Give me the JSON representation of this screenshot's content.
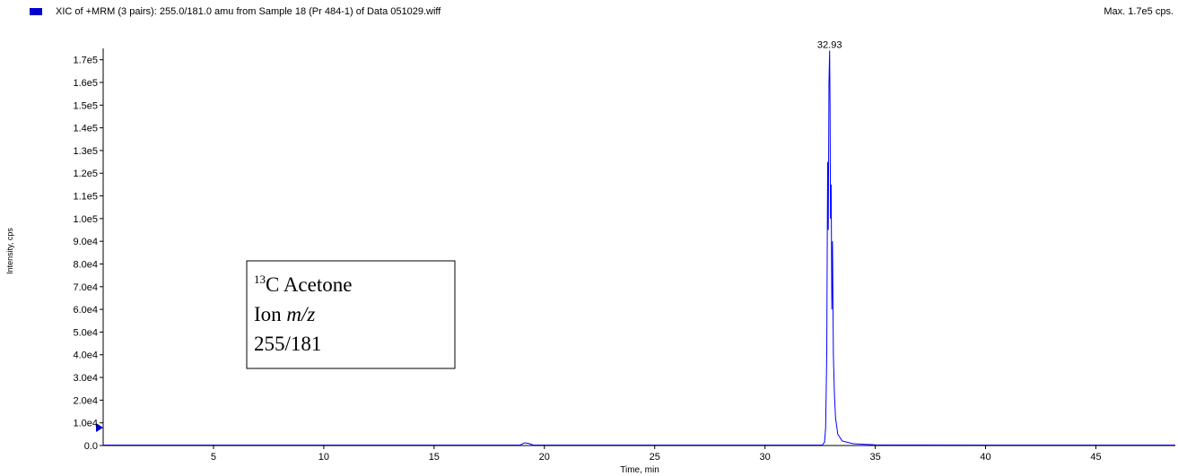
{
  "chart_data": {
    "type": "line",
    "title": "XIC of +MRM (3 pairs): 255.0/181.0 amu from Sample 18 (Pr 484-1) of Data 051029.wiff",
    "max_label": "Max. 1.7e5 cps.",
    "x_label": "Time, min",
    "y_label": "Intensity, cps",
    "peak_label": "32.93",
    "annotation_box": {
      "superscript": "13",
      "line1": "C Acetone",
      "line2_prefix": "Ion ",
      "line2_italic": "m/z",
      "line3": "255/181"
    },
    "x": [
      0,
      5,
      10,
      15,
      18.9,
      19.1,
      19.3,
      19.5,
      25,
      30,
      32.6,
      32.7,
      32.75,
      32.8,
      32.84,
      32.87,
      32.9,
      32.93,
      32.95,
      32.97,
      33.0,
      33.03,
      33.06,
      33.1,
      33.15,
      33.2,
      33.3,
      33.5,
      34,
      35,
      40,
      48.6
    ],
    "series": [
      {
        "name": "XIC of +MRM (3 pairs): 255.0/181.0 amu from Sample 18 (Pr 484-1) of Data 051029.wiff",
        "color": "#0000ff",
        "values": [
          200,
          200,
          200,
          200,
          200,
          1200,
          900,
          200,
          200,
          200,
          200,
          1500,
          8000,
          40000,
          125000,
          95000,
          160000,
          174000,
          150000,
          100000,
          115000,
          60000,
          90000,
          40000,
          22000,
          12000,
          5000,
          2000,
          800,
          300,
          200,
          200
        ]
      }
    ],
    "xlim": [
      0,
      48.6
    ],
    "ylim": [
      0,
      175000
    ],
    "xticks": [
      5,
      10,
      15,
      20,
      25,
      30,
      35,
      40,
      45
    ],
    "yticks": [
      {
        "value": 0,
        "label": "0.0"
      },
      {
        "value": 10000,
        "label": "1.0e4"
      },
      {
        "value": 20000,
        "label": "2.0e4"
      },
      {
        "value": 30000,
        "label": "3.0e4"
      },
      {
        "value": 40000,
        "label": "4.0e4"
      },
      {
        "value": 50000,
        "label": "5.0e4"
      },
      {
        "value": 60000,
        "label": "6.0e4"
      },
      {
        "value": 70000,
        "label": "7.0e4"
      },
      {
        "value": 80000,
        "label": "8.0e4"
      },
      {
        "value": 90000,
        "label": "9.0e4"
      },
      {
        "value": 100000,
        "label": "1.0e5"
      },
      {
        "value": 110000,
        "label": "1.1e5"
      },
      {
        "value": 120000,
        "label": "1.2e5"
      },
      {
        "value": 130000,
        "label": "1.3e5"
      },
      {
        "value": 140000,
        "label": "1.4e5"
      },
      {
        "value": 150000,
        "label": "1.5e5"
      },
      {
        "value": 160000,
        "label": "1.6e5"
      },
      {
        "value": 170000,
        "label": "1.7e5"
      }
    ]
  }
}
